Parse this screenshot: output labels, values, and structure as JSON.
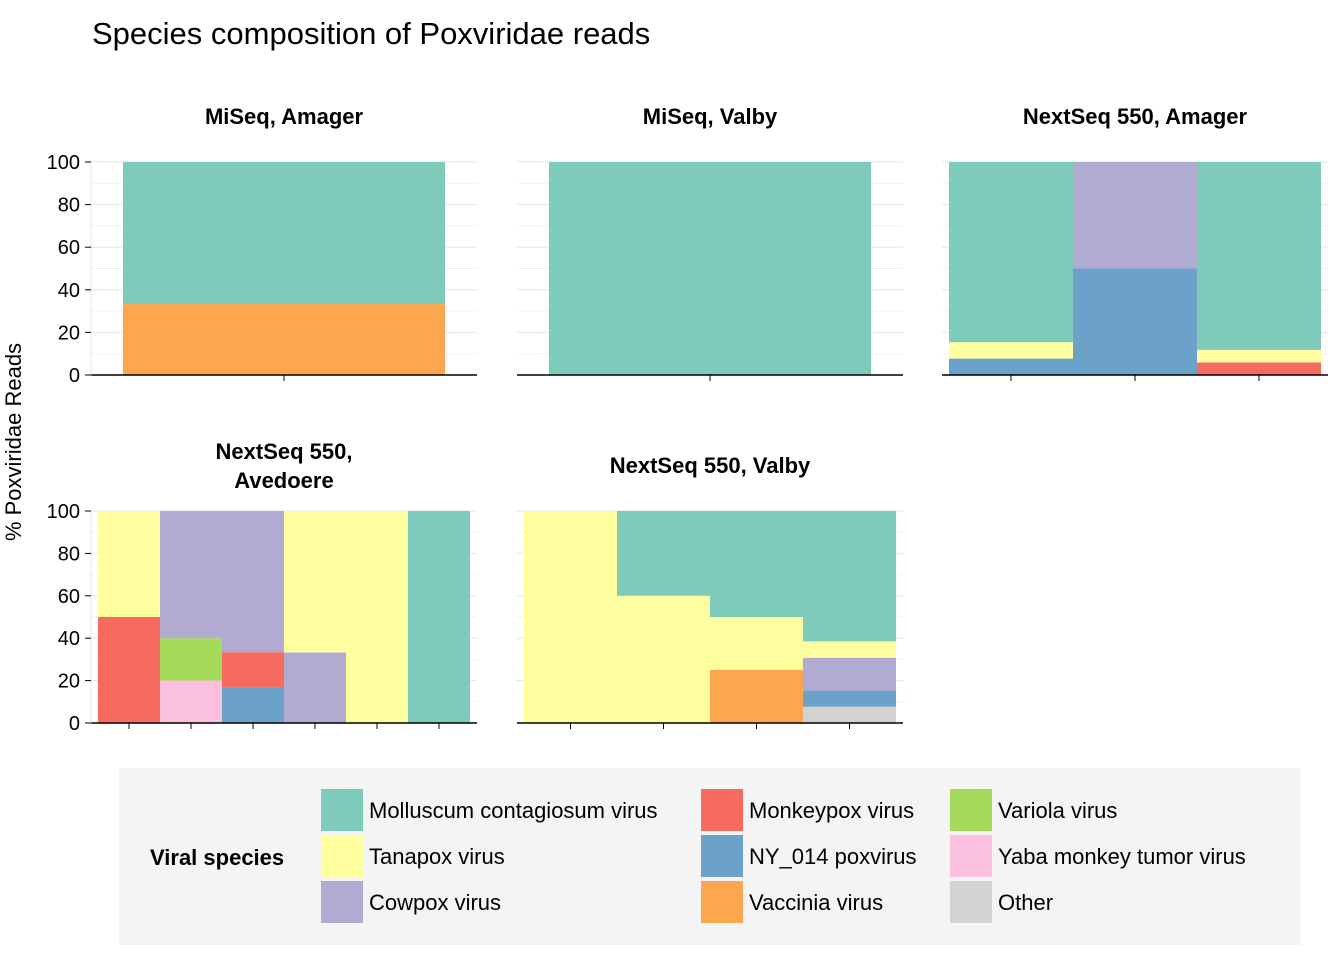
{
  "chart_data": {
    "type": "bar",
    "stacked": true,
    "title": "Species composition of Poxviridae reads",
    "ylabel": "% Poxviridae Reads",
    "xlabel": "",
    "ylim": [
      0,
      100
    ],
    "yticks": [
      0,
      20,
      40,
      60,
      80,
      100
    ],
    "grid": true,
    "legend": {
      "title": "Viral species",
      "position": "bottom",
      "entries": [
        {
          "name": "Molluscum contagiosum virus",
          "color": "#7fcbbb"
        },
        {
          "name": "Tanapox virus",
          "color": "#ffffa0"
        },
        {
          "name": "Cowpox virus",
          "color": "#b1aad1"
        },
        {
          "name": "Monkeypox virus",
          "color": "#f76a60"
        },
        {
          "name": "NY_014 poxvirus",
          "color": "#6ca1c9"
        },
        {
          "name": "Vaccinia virus",
          "color": "#fca64f"
        },
        {
          "name": "Variola virus",
          "color": "#a6da5a"
        },
        {
          "name": "Yaba monkey tumor virus",
          "color": "#fbc0df"
        },
        {
          "name": "Other",
          "color": "#d3d3d3"
        }
      ]
    },
    "facets": [
      {
        "title": "MiSeq, Amager",
        "bars": [
          [
            {
              "species": "Vaccinia virus",
              "value": 33.3
            },
            {
              "species": "Molluscum contagiosum virus",
              "value": 66.7
            }
          ]
        ]
      },
      {
        "title": "MiSeq, Valby",
        "bars": [
          [
            {
              "species": "Molluscum contagiosum virus",
              "value": 100
            }
          ]
        ]
      },
      {
        "title": "NextSeq 550, Amager",
        "bars": [
          [
            {
              "species": "NY_014 poxvirus",
              "value": 7.7
            },
            {
              "species": "Tanapox virus",
              "value": 7.7
            },
            {
              "species": "Molluscum contagiosum virus",
              "value": 84.6
            }
          ],
          [
            {
              "species": "NY_014 poxvirus",
              "value": 50
            },
            {
              "species": "Cowpox virus",
              "value": 50
            }
          ],
          [
            {
              "species": "Monkeypox virus",
              "value": 5.9
            },
            {
              "species": "Tanapox virus",
              "value": 5.9
            },
            {
              "species": "Molluscum contagiosum virus",
              "value": 88.2
            }
          ]
        ]
      },
      {
        "title": "NextSeq 550,\nAvedoere",
        "bars": [
          [
            {
              "species": "Monkeypox virus",
              "value": 50
            },
            {
              "species": "Tanapox virus",
              "value": 50
            }
          ],
          [
            {
              "species": "Yaba monkey tumor virus",
              "value": 20
            },
            {
              "species": "Variola virus",
              "value": 20
            },
            {
              "species": "Cowpox virus",
              "value": 60
            }
          ],
          [
            {
              "species": "NY_014 poxvirus",
              "value": 16.7
            },
            {
              "species": "Monkeypox virus",
              "value": 16.7
            },
            {
              "species": "Cowpox virus",
              "value": 66.6
            }
          ],
          [
            {
              "species": "Cowpox virus",
              "value": 33.3
            },
            {
              "species": "Tanapox virus",
              "value": 66.7
            }
          ],
          [
            {
              "species": "Tanapox virus",
              "value": 100
            }
          ],
          [
            {
              "species": "Molluscum contagiosum virus",
              "value": 100
            }
          ]
        ]
      },
      {
        "title": "NextSeq 550, Valby",
        "bars": [
          [
            {
              "species": "Tanapox virus",
              "value": 100
            }
          ],
          [
            {
              "species": "Tanapox virus",
              "value": 60
            },
            {
              "species": "Molluscum contagiosum virus",
              "value": 40
            }
          ],
          [
            {
              "species": "Vaccinia virus",
              "value": 25
            },
            {
              "species": "Tanapox virus",
              "value": 25
            },
            {
              "species": "Molluscum contagiosum virus",
              "value": 50
            }
          ],
          [
            {
              "species": "Other",
              "value": 7.7
            },
            {
              "species": "NY_014 poxvirus",
              "value": 7.7
            },
            {
              "species": "Cowpox virus",
              "value": 15.4
            },
            {
              "species": "Tanapox virus",
              "value": 7.7
            },
            {
              "species": "Molluscum contagiosum virus",
              "value": 61.5
            }
          ]
        ]
      }
    ]
  }
}
